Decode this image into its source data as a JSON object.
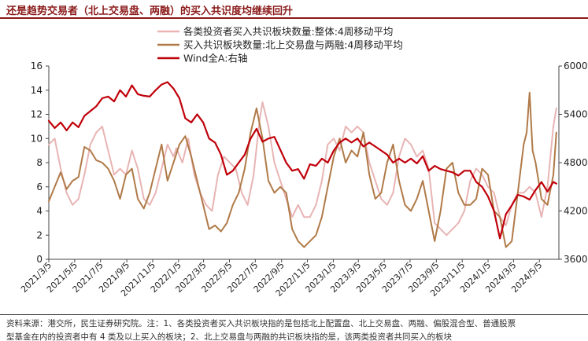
{
  "title": "还是趋势交易者（北上交易盘、两融）的买入共识度均继续回升",
  "notes": {
    "line1": "资料来源：港交所，民生证券研究院。注：1、各类投资者买入共识板块指的是包括北上配置盘、北上交易盘、两融、偏股混合型、普通股票",
    "line2": "型基金在内的投资者中有 4 类及以上买入的板块；2、北上交易盘与两融的共识板块指的是，该两类投资者共同买入的板块"
  },
  "chart_data": {
    "type": "line",
    "title": "",
    "xlabel": "",
    "ylabel": "",
    "ylim": [
      0,
      16
    ],
    "yticks": [
      0,
      2,
      4,
      6,
      8,
      10,
      12,
      14,
      16
    ],
    "y2lim": [
      3600,
      6000
    ],
    "y2ticks": [
      3600,
      4200,
      4800,
      5400,
      6000
    ],
    "y2tick_labels": [
      "3600",
      "4200",
      "4800",
      "5400",
      "6000"
    ],
    "xlim": [
      "2021-03-05",
      "2024-06-20"
    ],
    "xtick_labels": [
      "2021/3/5",
      "2021/5/5",
      "2021/7/5",
      "2021/9/5",
      "2021/11/5",
      "2022/1/5",
      "2022/3/5",
      "2022/5/5",
      "2022/7/5",
      "2022/9/5",
      "2022/11/5",
      "2023/1/5",
      "2023/3/5",
      "2023/5/5",
      "2023/7/5",
      "2023/9/5",
      "2023/11/5",
      "2024/1/5",
      "2024/3/5",
      "2024/5/5"
    ],
    "xtick_dates": [
      "2021-03-05",
      "2021-05-05",
      "2021-07-05",
      "2021-09-05",
      "2021-11-05",
      "2022-01-05",
      "2022-03-05",
      "2022-05-05",
      "2022-07-05",
      "2022-09-05",
      "2022-11-05",
      "2023-01-05",
      "2023-03-05",
      "2023-05-05",
      "2023-07-05",
      "2023-09-05",
      "2023-11-05",
      "2024-01-05",
      "2024-03-05",
      "2024-05-05"
    ],
    "legend_position": "top",
    "series": [
      {
        "name": "各类投资者买入共识板块数量:整体:4周移动平均",
        "axis": "left",
        "color": "#e8b4b4",
        "points": [
          [
            "2021-03-05",
            9.5
          ],
          [
            "2021-03-19",
            10.0
          ],
          [
            "2021-04-02",
            7.5
          ],
          [
            "2021-04-16",
            5.5
          ],
          [
            "2021-04-30",
            4.5
          ],
          [
            "2021-05-14",
            5.0
          ],
          [
            "2021-05-28",
            7.0
          ],
          [
            "2021-06-11",
            9.5
          ],
          [
            "2021-06-25",
            10.5
          ],
          [
            "2021-07-09",
            11.0
          ],
          [
            "2021-07-23",
            9.0
          ],
          [
            "2021-08-06",
            7.0
          ],
          [
            "2021-08-20",
            7.5
          ],
          [
            "2021-09-03",
            7.0
          ],
          [
            "2021-09-17",
            9.0
          ],
          [
            "2021-10-01",
            7.5
          ],
          [
            "2021-10-15",
            5.0
          ],
          [
            "2021-10-29",
            4.5
          ],
          [
            "2021-11-12",
            5.5
          ],
          [
            "2021-11-26",
            7.5
          ],
          [
            "2021-12-10",
            9.5
          ],
          [
            "2021-12-24",
            8.5
          ],
          [
            "2021-12-31",
            9.2
          ],
          [
            "2022-01-14",
            8.0
          ],
          [
            "2022-01-28",
            10.0
          ],
          [
            "2022-02-11",
            7.0
          ],
          [
            "2022-02-25",
            5.5
          ],
          [
            "2022-03-11",
            4.5
          ],
          [
            "2022-03-25",
            4.0
          ],
          [
            "2022-04-08",
            7.0
          ],
          [
            "2022-04-22",
            8.5
          ],
          [
            "2022-05-06",
            8.0
          ],
          [
            "2022-05-20",
            7.5
          ],
          [
            "2022-06-03",
            5.5
          ],
          [
            "2022-06-17",
            4.5
          ],
          [
            "2022-07-01",
            7.0
          ],
          [
            "2022-07-15",
            11.5
          ],
          [
            "2022-07-22",
            13.0
          ],
          [
            "2022-08-05",
            11.0
          ],
          [
            "2022-08-19",
            8.0
          ],
          [
            "2022-09-02",
            6.5
          ],
          [
            "2022-09-16",
            5.0
          ],
          [
            "2022-09-30",
            3.5
          ],
          [
            "2022-10-14",
            4.5
          ],
          [
            "2022-10-28",
            3.5
          ],
          [
            "2022-11-11",
            3.5
          ],
          [
            "2022-11-25",
            4.5
          ],
          [
            "2022-12-09",
            6.5
          ],
          [
            "2022-12-23",
            9.5
          ],
          [
            "2023-01-06",
            10.0
          ],
          [
            "2023-01-20",
            9.0
          ],
          [
            "2023-02-03",
            11.0
          ],
          [
            "2023-02-17",
            10.5
          ],
          [
            "2023-03-03",
            11.0
          ],
          [
            "2023-03-17",
            10.5
          ],
          [
            "2023-03-31",
            8.0
          ],
          [
            "2023-04-14",
            6.5
          ],
          [
            "2023-04-28",
            5.0
          ],
          [
            "2023-05-12",
            4.5
          ],
          [
            "2023-05-26",
            5.5
          ],
          [
            "2023-06-09",
            8.5
          ],
          [
            "2023-06-23",
            10.0
          ],
          [
            "2023-07-07",
            9.5
          ],
          [
            "2023-07-21",
            8.5
          ],
          [
            "2023-08-04",
            9.0
          ],
          [
            "2023-08-18",
            7.5
          ],
          [
            "2023-09-01",
            3.0
          ],
          [
            "2023-09-15",
            2.5
          ],
          [
            "2023-09-29",
            2.0
          ],
          [
            "2023-10-13",
            2.5
          ],
          [
            "2023-10-27",
            3.0
          ],
          [
            "2023-11-10",
            4.0
          ],
          [
            "2023-11-24",
            6.5
          ],
          [
            "2023-12-08",
            7.5
          ],
          [
            "2023-12-22",
            7.0
          ],
          [
            "2024-01-05",
            6.0
          ],
          [
            "2024-01-19",
            5.5
          ],
          [
            "2024-02-02",
            3.5
          ],
          [
            "2024-02-16",
            2.8
          ],
          [
            "2024-03-01",
            4.5
          ],
          [
            "2024-03-15",
            5.5
          ],
          [
            "2024-03-29",
            5.5
          ],
          [
            "2024-04-12",
            6.0
          ],
          [
            "2024-04-26",
            5.5
          ],
          [
            "2024-05-10",
            3.5
          ],
          [
            "2024-05-24",
            6.0
          ],
          [
            "2024-06-07",
            11.0
          ],
          [
            "2024-06-14",
            12.5
          ]
        ]
      },
      {
        "name": "买入共识板块数量:北上交易盘与两融:4周移动平均",
        "axis": "left",
        "color": "#b07a48",
        "points": [
          [
            "2021-03-05",
            4.8
          ],
          [
            "2021-03-19",
            6.0
          ],
          [
            "2021-04-02",
            7.2
          ],
          [
            "2021-04-16",
            5.8
          ],
          [
            "2021-04-30",
            6.5
          ],
          [
            "2021-05-14",
            6.8
          ],
          [
            "2021-05-28",
            9.3
          ],
          [
            "2021-06-11",
            9.0
          ],
          [
            "2021-06-25",
            8.2
          ],
          [
            "2021-07-09",
            8.0
          ],
          [
            "2021-07-23",
            7.5
          ],
          [
            "2021-08-06",
            6.5
          ],
          [
            "2021-08-20",
            5.0
          ],
          [
            "2021-09-03",
            7.0
          ],
          [
            "2021-09-17",
            7.5
          ],
          [
            "2021-10-01",
            5.0
          ],
          [
            "2021-10-15",
            4.2
          ],
          [
            "2021-10-29",
            5.5
          ],
          [
            "2021-11-12",
            7.5
          ],
          [
            "2021-11-26",
            9.5
          ],
          [
            "2021-12-10",
            6.5
          ],
          [
            "2021-12-24",
            8.0
          ],
          [
            "2022-01-07",
            9.5
          ],
          [
            "2022-01-21",
            10.2
          ],
          [
            "2022-02-04",
            8.5
          ],
          [
            "2022-02-18",
            6.5
          ],
          [
            "2022-03-04",
            4.5
          ],
          [
            "2022-03-18",
            2.5
          ],
          [
            "2022-04-01",
            2.8
          ],
          [
            "2022-04-15",
            2.3
          ],
          [
            "2022-04-29",
            3.0
          ],
          [
            "2022-05-13",
            4.5
          ],
          [
            "2022-05-27",
            5.5
          ],
          [
            "2022-06-10",
            7.5
          ],
          [
            "2022-06-24",
            10.5
          ],
          [
            "2022-07-08",
            12.5
          ],
          [
            "2022-07-22",
            10.0
          ],
          [
            "2022-08-05",
            6.5
          ],
          [
            "2022-08-19",
            5.5
          ],
          [
            "2022-09-02",
            6.0
          ],
          [
            "2022-09-16",
            5.5
          ],
          [
            "2022-09-30",
            2.5
          ],
          [
            "2022-10-14",
            1.5
          ],
          [
            "2022-10-28",
            1.0
          ],
          [
            "2022-11-11",
            1.5
          ],
          [
            "2022-11-25",
            2.0
          ],
          [
            "2022-12-09",
            3.5
          ],
          [
            "2022-12-23",
            6.0
          ],
          [
            "2023-01-06",
            8.5
          ],
          [
            "2023-01-20",
            10.0
          ],
          [
            "2023-02-03",
            8.0
          ],
          [
            "2023-02-17",
            9.0
          ],
          [
            "2023-03-03",
            8.5
          ],
          [
            "2023-03-17",
            10.5
          ],
          [
            "2023-03-31",
            7.0
          ],
          [
            "2023-04-14",
            5.0
          ],
          [
            "2023-04-28",
            5.5
          ],
          [
            "2023-05-12",
            8.0
          ],
          [
            "2023-05-26",
            9.5
          ],
          [
            "2023-06-09",
            6.5
          ],
          [
            "2023-06-23",
            4.5
          ],
          [
            "2023-07-07",
            4.0
          ],
          [
            "2023-07-21",
            5.0
          ],
          [
            "2023-08-04",
            6.5
          ],
          [
            "2023-08-18",
            4.0
          ],
          [
            "2023-09-01",
            1.5
          ],
          [
            "2023-09-15",
            4.0
          ],
          [
            "2023-09-29",
            7.5
          ],
          [
            "2023-10-13",
            8.0
          ],
          [
            "2023-10-27",
            5.5
          ],
          [
            "2023-11-10",
            4.5
          ],
          [
            "2023-11-24",
            4.5
          ],
          [
            "2023-12-08",
            5.0
          ],
          [
            "2023-12-22",
            7.5
          ],
          [
            "2024-01-05",
            7.0
          ],
          [
            "2024-01-19",
            4.0
          ],
          [
            "2024-02-02",
            3.5
          ],
          [
            "2024-02-16",
            1.0
          ],
          [
            "2024-03-01",
            1.5
          ],
          [
            "2024-03-15",
            5.5
          ],
          [
            "2024-03-29",
            9.5
          ],
          [
            "2024-04-05",
            10.5
          ],
          [
            "2024-04-12",
            13.8
          ],
          [
            "2024-04-19",
            9.0
          ],
          [
            "2024-04-26",
            8.0
          ],
          [
            "2024-05-10",
            5.0
          ],
          [
            "2024-05-24",
            4.5
          ],
          [
            "2024-06-07",
            7.0
          ],
          [
            "2024-06-14",
            10.5
          ]
        ]
      },
      {
        "name": "Wind全A:右轴",
        "axis": "right",
        "color": "#c0000a",
        "points": [
          [
            "2021-03-05",
            5320
          ],
          [
            "2021-03-19",
            5230
          ],
          [
            "2021-04-02",
            5300
          ],
          [
            "2021-04-16",
            5200
          ],
          [
            "2021-04-30",
            5300
          ],
          [
            "2021-05-14",
            5240
          ],
          [
            "2021-05-28",
            5380
          ],
          [
            "2021-06-11",
            5440
          ],
          [
            "2021-06-25",
            5500
          ],
          [
            "2021-07-09",
            5600
          ],
          [
            "2021-07-23",
            5620
          ],
          [
            "2021-08-06",
            5560
          ],
          [
            "2021-08-20",
            5700
          ],
          [
            "2021-09-03",
            5620
          ],
          [
            "2021-09-17",
            5760
          ],
          [
            "2021-10-01",
            5650
          ],
          [
            "2021-10-15",
            5630
          ],
          [
            "2021-10-29",
            5620
          ],
          [
            "2021-11-12",
            5700
          ],
          [
            "2021-11-26",
            5770
          ],
          [
            "2021-12-10",
            5800
          ],
          [
            "2021-12-24",
            5720
          ],
          [
            "2022-01-07",
            5600
          ],
          [
            "2022-01-21",
            5350
          ],
          [
            "2022-02-04",
            5300
          ],
          [
            "2022-02-18",
            5400
          ],
          [
            "2022-03-04",
            5300
          ],
          [
            "2022-03-18",
            5100
          ],
          [
            "2022-04-01",
            5050
          ],
          [
            "2022-04-15",
            4900
          ],
          [
            "2022-04-29",
            4650
          ],
          [
            "2022-05-13",
            4700
          ],
          [
            "2022-05-27",
            4800
          ],
          [
            "2022-06-10",
            4900
          ],
          [
            "2022-06-24",
            5100
          ],
          [
            "2022-07-08",
            5220
          ],
          [
            "2022-07-22",
            5060
          ],
          [
            "2022-08-05",
            5100
          ],
          [
            "2022-08-19",
            5120
          ],
          [
            "2022-09-02",
            4960
          ],
          [
            "2022-09-16",
            4800
          ],
          [
            "2022-09-30",
            4700
          ],
          [
            "2022-10-14",
            4720
          ],
          [
            "2022-10-28",
            4600
          ],
          [
            "2022-11-11",
            4780
          ],
          [
            "2022-11-25",
            4760
          ],
          [
            "2022-12-09",
            4850
          ],
          [
            "2022-12-23",
            4800
          ],
          [
            "2023-01-06",
            4950
          ],
          [
            "2023-01-20",
            5050
          ],
          [
            "2023-02-03",
            5100
          ],
          [
            "2023-02-17",
            5050
          ],
          [
            "2023-03-03",
            5100
          ],
          [
            "2023-03-17",
            5000
          ],
          [
            "2023-03-31",
            5050
          ],
          [
            "2023-04-14",
            5000
          ],
          [
            "2023-04-28",
            4950
          ],
          [
            "2023-05-12",
            4900
          ],
          [
            "2023-05-26",
            4800
          ],
          [
            "2023-06-09",
            4850
          ],
          [
            "2023-06-23",
            4800
          ],
          [
            "2023-07-07",
            4850
          ],
          [
            "2023-07-21",
            4790
          ],
          [
            "2023-08-04",
            4880
          ],
          [
            "2023-08-18",
            4700
          ],
          [
            "2023-09-01",
            4760
          ],
          [
            "2023-09-15",
            4720
          ],
          [
            "2023-09-29",
            4700
          ],
          [
            "2023-10-13",
            4680
          ],
          [
            "2023-10-27",
            4640
          ],
          [
            "2023-11-10",
            4700
          ],
          [
            "2023-11-24",
            4700
          ],
          [
            "2023-12-08",
            4560
          ],
          [
            "2023-12-22",
            4500
          ],
          [
            "2024-01-05",
            4380
          ],
          [
            "2024-01-19",
            4200
          ],
          [
            "2024-02-02",
            3860
          ],
          [
            "2024-02-16",
            4160
          ],
          [
            "2024-03-01",
            4270
          ],
          [
            "2024-03-15",
            4400
          ],
          [
            "2024-03-29",
            4380
          ],
          [
            "2024-04-12",
            4340
          ],
          [
            "2024-04-26",
            4460
          ],
          [
            "2024-05-10",
            4560
          ],
          [
            "2024-05-24",
            4440
          ],
          [
            "2024-06-07",
            4560
          ],
          [
            "2024-06-14",
            4540
          ]
        ]
      }
    ]
  }
}
